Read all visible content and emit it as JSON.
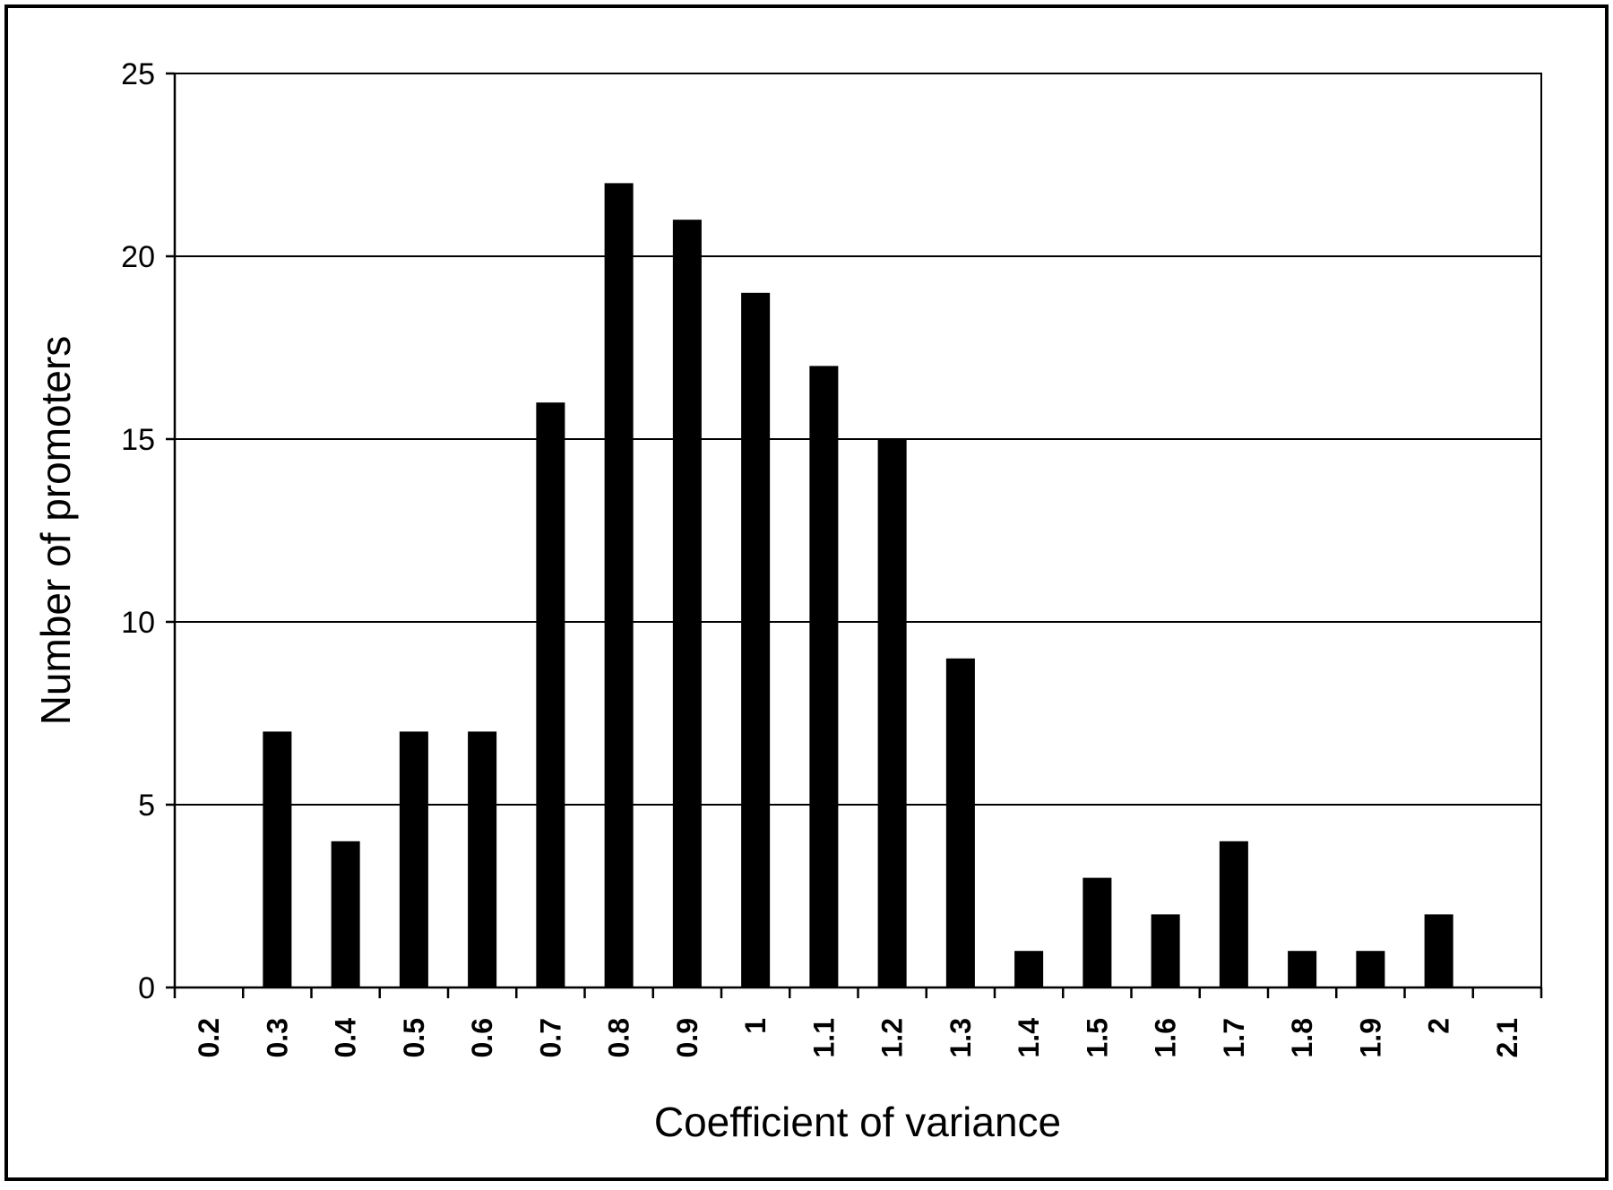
{
  "chart_data": {
    "type": "bar",
    "xlabel": "Coefficient of variance",
    "ylabel": "Number of promoters",
    "ylim": [
      0,
      25
    ],
    "yticks": [
      "0",
      "5",
      "10",
      "15",
      "20",
      "25"
    ],
    "categories": [
      "0.2",
      "0.3",
      "0.4",
      "0.5",
      "0.6",
      "0.7",
      "0.8",
      "0.9",
      "1",
      "1.1",
      "1.2",
      "1.3",
      "1.4",
      "1.5",
      "1.6",
      "1.7",
      "1.8",
      "1.9",
      "2",
      "2.1"
    ],
    "values": [
      0,
      7,
      4,
      7,
      7,
      16,
      22,
      21,
      19,
      17,
      15,
      9,
      1,
      3,
      2,
      4,
      1,
      1,
      2,
      0
    ],
    "grid": "horizontal",
    "legend": "none",
    "bar_color": "#000000"
  }
}
